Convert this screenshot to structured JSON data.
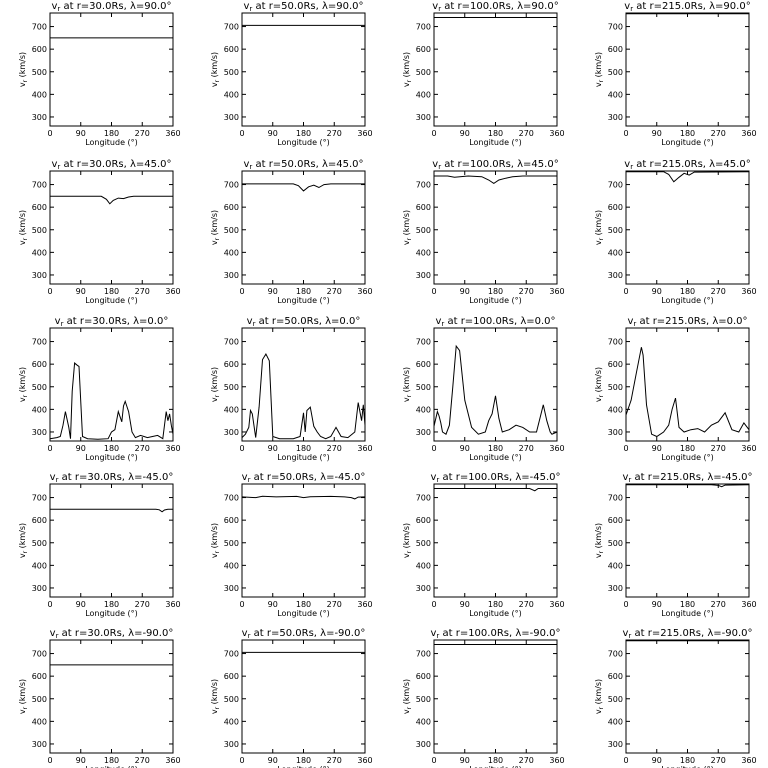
{
  "chart_data": {
    "type": "line",
    "rows": [
      "90.0",
      "45.0",
      "0.0",
      "-45.0",
      "-90.0"
    ],
    "cols": [
      "30.0",
      "50.0",
      "100.0",
      "215.0"
    ],
    "xlabel": "Longitude (°)",
    "ylabel": "v_r (km/s)",
    "xlim": [
      0,
      360
    ],
    "ylim": [
      260,
      760
    ],
    "xticks": [
      0,
      90,
      180,
      270,
      360
    ],
    "yticks": [
      300,
      400,
      500,
      600,
      700
    ],
    "panels": [
      {
        "title": "v_r at r=30.0Rs, λ=90.0°",
        "x": [
          0,
          360
        ],
        "y": [
          650,
          650
        ]
      },
      {
        "title": "v_r at r=50.0Rs, λ=90.0°",
        "x": [
          0,
          360
        ],
        "y": [
          705,
          705
        ]
      },
      {
        "title": "v_r at r=100.0Rs, λ=90.0°",
        "x": [
          0,
          360
        ],
        "y": [
          740,
          740
        ]
      },
      {
        "title": "v_r at r=215.0Rs, λ=90.0°",
        "x": [
          0,
          360
        ],
        "y": [
          757,
          757
        ]
      },
      {
        "title": "v_r at r=30.0Rs, λ=45.0°",
        "x": [
          0,
          150,
          165,
          175,
          185,
          200,
          215,
          230,
          245,
          360
        ],
        "y": [
          648,
          648,
          635,
          615,
          630,
          640,
          638,
          645,
          648,
          648
        ]
      },
      {
        "title": "v_r at r=50.0Rs, λ=45.0°",
        "x": [
          0,
          150,
          165,
          180,
          195,
          210,
          225,
          240,
          260,
          360
        ],
        "y": [
          703,
          703,
          695,
          672,
          690,
          697,
          687,
          700,
          703,
          703
        ]
      },
      {
        "title": "v_r at r=100.0Rs, λ=45.0°",
        "x": [
          0,
          40,
          60,
          100,
          140,
          160,
          175,
          190,
          210,
          230,
          260,
          300,
          360
        ],
        "y": [
          738,
          738,
          732,
          738,
          735,
          720,
          705,
          720,
          728,
          735,
          738,
          738,
          738
        ]
      },
      {
        "title": "v_r at r=215.0Rs, λ=45.0°",
        "x": [
          0,
          110,
          125,
          140,
          155,
          170,
          185,
          200,
          360
        ],
        "y": [
          757,
          757,
          745,
          712,
          732,
          750,
          742,
          755,
          757
        ]
      },
      {
        "title": "v_r at r=30.0Rs, λ=0.0°",
        "x": [
          0,
          20,
          30,
          38,
          45,
          55,
          60,
          65,
          72,
          80,
          85,
          95,
          110,
          140,
          170,
          180,
          190,
          200,
          210,
          215,
          220,
          230,
          240,
          250,
          265,
          275,
          285,
          300,
          315,
          330,
          340,
          345,
          350,
          355,
          360
        ],
        "y": [
          270,
          275,
          280,
          330,
          390,
          320,
          270,
          480,
          605,
          595,
          590,
          280,
          270,
          268,
          270,
          300,
          310,
          390,
          345,
          415,
          435,
          390,
          300,
          275,
          285,
          280,
          275,
          280,
          285,
          270,
          390,
          350,
          380,
          330,
          290
        ]
      },
      {
        "title": "v_r at r=50.0Rs, λ=0.0°",
        "x": [
          0,
          10,
          20,
          25,
          30,
          40,
          50,
          60,
          70,
          80,
          90,
          110,
          150,
          170,
          180,
          185,
          190,
          200,
          210,
          220,
          230,
          245,
          260,
          275,
          290,
          310,
          330,
          340,
          350,
          355,
          360
        ],
        "y": [
          275,
          290,
          320,
          395,
          380,
          275,
          410,
          620,
          645,
          615,
          280,
          270,
          270,
          280,
          385,
          300,
          395,
          410,
          325,
          300,
          280,
          270,
          280,
          320,
          280,
          275,
          300,
          430,
          350,
          420,
          330
        ]
      },
      {
        "title": "v_r at r=100.0Rs, λ=0.0°",
        "x": [
          0,
          10,
          15,
          20,
          25,
          35,
          45,
          55,
          65,
          75,
          90,
          110,
          130,
          150,
          160,
          170,
          180,
          190,
          200,
          220,
          240,
          260,
          280,
          300,
          315,
          320,
          330,
          340,
          345,
          360
        ],
        "y": [
          325,
          390,
          370,
          340,
          300,
          290,
          330,
          500,
          680,
          660,
          440,
          320,
          290,
          300,
          350,
          380,
          460,
          360,
          300,
          310,
          330,
          320,
          300,
          300,
          390,
          420,
          350,
          300,
          290,
          300
        ]
      },
      {
        "title": "v_r at r=215.0Rs, λ=0.0°",
        "x": [
          0,
          15,
          30,
          45,
          50,
          60,
          75,
          90,
          110,
          125,
          135,
          145,
          155,
          170,
          190,
          210,
          230,
          250,
          270,
          290,
          310,
          330,
          345,
          360
        ],
        "y": [
          375,
          440,
          560,
          675,
          640,
          420,
          290,
          280,
          300,
          330,
          400,
          450,
          320,
          300,
          310,
          315,
          300,
          330,
          345,
          385,
          310,
          300,
          340,
          310
        ]
      },
      {
        "title": "v_r at r=30.0Rs, λ=-45.0°",
        "x": [
          0,
          310,
          320,
          328,
          335,
          345,
          360
        ],
        "y": [
          648,
          648,
          646,
          637,
          645,
          648,
          648
        ]
      },
      {
        "title": "v_r at r=50.0Rs, λ=-45.0°",
        "x": [
          0,
          40,
          60,
          100,
          160,
          180,
          200,
          260,
          300,
          320,
          330,
          340,
          360
        ],
        "y": [
          703,
          700,
          706,
          703,
          705,
          700,
          704,
          705,
          703,
          700,
          694,
          702,
          703
        ]
      },
      {
        "title": "v_r at r=100.0Rs, λ=-45.0°",
        "x": [
          0,
          150,
          200,
          280,
          295,
          305,
          320,
          360
        ],
        "y": [
          740,
          740,
          740,
          740,
          730,
          740,
          740,
          740
        ]
      },
      {
        "title": "v_r at r=215.0Rs, λ=-45.0°",
        "x": [
          0,
          250,
          270,
          280,
          290,
          360
        ],
        "y": [
          757,
          757,
          754,
          748,
          755,
          757
        ]
      },
      {
        "title": "v_r at r=30.0Rs, λ=-90.0°",
        "x": [
          0,
          360
        ],
        "y": [
          650,
          650
        ]
      },
      {
        "title": "v_r at r=50.0Rs, λ=-90.0°",
        "x": [
          0,
          360
        ],
        "y": [
          705,
          705
        ]
      },
      {
        "title": "v_r at r=100.0Rs, λ=-90.0°",
        "x": [
          0,
          360
        ],
        "y": [
          740,
          740
        ]
      },
      {
        "title": "v_r at r=215.0Rs, λ=-90.0°",
        "x": [
          0,
          360
        ],
        "y": [
          757,
          757
        ]
      }
    ]
  }
}
